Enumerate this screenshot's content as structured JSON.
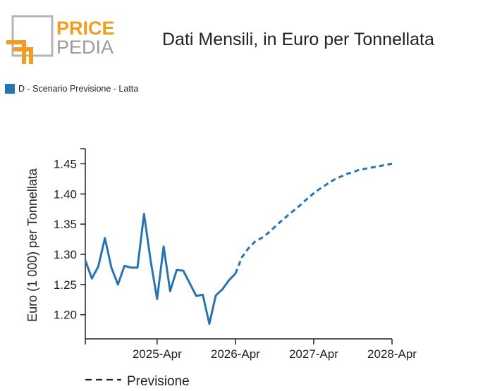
{
  "header": {
    "logo_top": "PRICE",
    "logo_bottom": "PEDIA",
    "title": "Dati Mensili, in Euro per Tonnellata"
  },
  "colors": {
    "series": "#2874b2",
    "logo_orange": "#f39c1f",
    "logo_gray": "#9a9a9a",
    "axis": "#222222"
  },
  "legend": {
    "label": "D - Scenario Previsione - Latta"
  },
  "forecast_note": {
    "label": "Previsione"
  },
  "chart_data": {
    "type": "line",
    "ylabel": "Euro (1 000) per Tonnellata",
    "yticks": [
      1.2,
      1.25,
      1.3,
      1.35,
      1.4,
      1.45
    ],
    "ytick_labels": [
      "1.20",
      "1.25",
      "1.30",
      "1.35",
      "1.40",
      "1.45"
    ],
    "xticks": [
      "2024-05",
      "2025-04",
      "2026-04",
      "2027-04",
      "2028-04"
    ],
    "xtick_labels": [
      "",
      "2025-Apr",
      "2026-Apr",
      "2027-Apr",
      "2028-Apr"
    ],
    "xlim": [
      "2024-05",
      "2028-04"
    ],
    "ylim": [
      1.16,
      1.475
    ],
    "series": [
      {
        "name": "D - Scenario Previsione - Latta",
        "style": "solid",
        "x": [
          "2024-05",
          "2024-06",
          "2024-07",
          "2024-08",
          "2024-09",
          "2024-10",
          "2024-11",
          "2024-12",
          "2025-01",
          "2025-02",
          "2025-03",
          "2025-04",
          "2025-05",
          "2025-06",
          "2025-07",
          "2025-08",
          "2025-09",
          "2025-10",
          "2025-11",
          "2025-12",
          "2026-01",
          "2026-02",
          "2026-03",
          "2026-04"
        ],
        "values": [
          1.29,
          1.26,
          1.28,
          1.327,
          1.278,
          1.25,
          1.281,
          1.278,
          1.278,
          1.367,
          1.29,
          1.226,
          1.313,
          1.239,
          1.274,
          1.273,
          1.252,
          1.231,
          1.233,
          1.185,
          1.232,
          1.242,
          1.257,
          1.268
        ]
      },
      {
        "name": "Previsione",
        "style": "dashed",
        "x": [
          "2026-04",
          "2026-05",
          "2026-06",
          "2026-07",
          "2026-08",
          "2026-09",
          "2026-10",
          "2026-11",
          "2026-12",
          "2027-01",
          "2027-02",
          "2027-03",
          "2027-04",
          "2027-05",
          "2027-06",
          "2027-07",
          "2027-08",
          "2027-09",
          "2027-10",
          "2027-11",
          "2027-12",
          "2028-01",
          "2028-02",
          "2028-03",
          "2028-04"
        ],
        "values": [
          1.268,
          1.295,
          1.31,
          1.321,
          1.327,
          1.335,
          1.345,
          1.355,
          1.364,
          1.373,
          1.382,
          1.392,
          1.401,
          1.409,
          1.416,
          1.423,
          1.428,
          1.433,
          1.436,
          1.44,
          1.442,
          1.444,
          1.446,
          1.448,
          1.45
        ]
      }
    ],
    "grid": false
  }
}
